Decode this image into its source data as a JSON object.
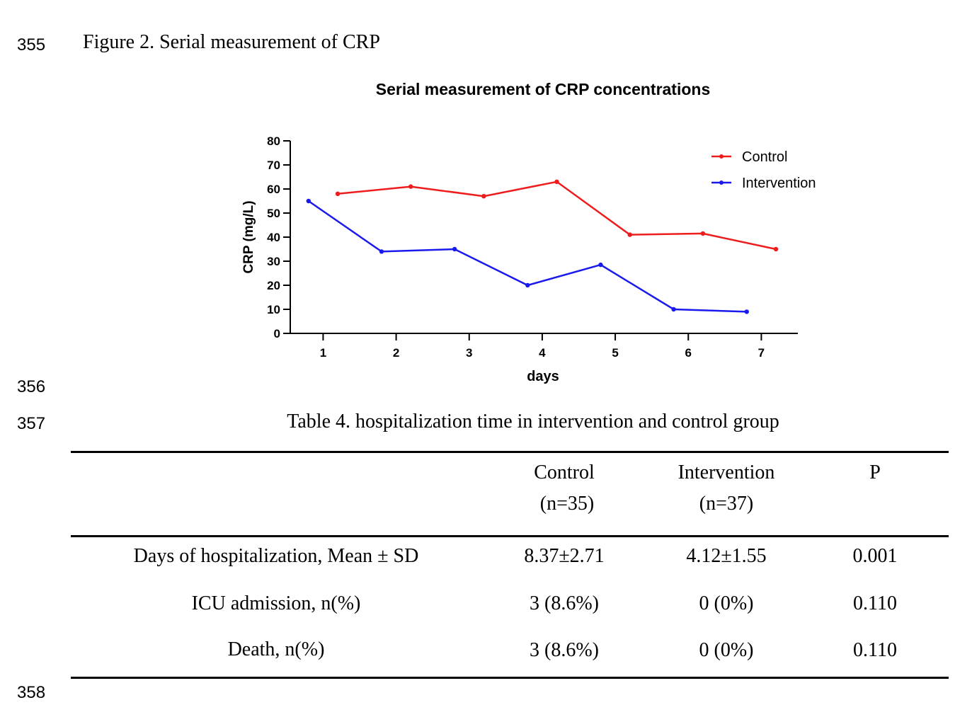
{
  "line_numbers": [
    "355",
    "356",
    "357",
    "358"
  ],
  "figure_caption": "Figure 2. Serial measurement of CRP",
  "chart_data": {
    "type": "line",
    "title": "Serial measurement of CRP concentrations",
    "xlabel": "days",
    "ylabel": "CRP (mg/L)",
    "x_ticks": [
      1,
      2,
      3,
      4,
      5,
      6,
      7
    ],
    "y_ticks": [
      0,
      10,
      20,
      30,
      40,
      50,
      60,
      70,
      80
    ],
    "ylim": [
      0,
      80
    ],
    "xlim": [
      0.55,
      7.5
    ],
    "legend_position": "top-right",
    "series": [
      {
        "name": "Control",
        "color": "#ee1c1c",
        "x": [
          1.2,
          2.2,
          3.2,
          4.2,
          5.2,
          6.2,
          7.2
        ],
        "values": [
          58,
          61,
          57,
          63,
          41,
          41.5,
          35
        ]
      },
      {
        "name": "Intervention",
        "color": "#1a1aee",
        "x": [
          0.8,
          1.8,
          2.8,
          3.8,
          4.8,
          5.8,
          6.8
        ],
        "values": [
          55,
          34,
          35,
          20,
          28.5,
          10,
          9
        ]
      }
    ]
  },
  "table_caption": "Table 4. hospitalization time in intervention and control group",
  "table": {
    "headers": [
      {
        "line1": "",
        "line2": ""
      },
      {
        "line1": "Control",
        "line2": "(n=35)"
      },
      {
        "line1": "Intervention",
        "line2": "(n=37)"
      },
      {
        "line1": "P",
        "line2": ""
      }
    ],
    "rows": [
      [
        "Days of hospitalization, Mean ± SD",
        "8.37±2.71",
        "4.12±1.55",
        "0.001"
      ],
      [
        "ICU admission, n(%)",
        "3 (8.6%)",
        "0 (0%)",
        "0.110"
      ],
      [
        "Death, n(%)",
        "3 (8.6%)",
        "0 (0%)",
        "0.110"
      ]
    ]
  }
}
